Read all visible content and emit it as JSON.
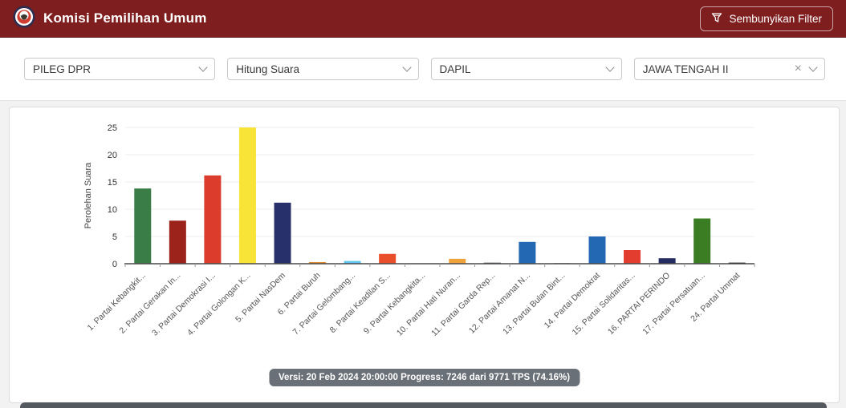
{
  "header": {
    "title": "Komisi Pemilihan Umum",
    "toggle_filter_label": "Sembunyikan Filter",
    "bg_color": "#7E1E1E"
  },
  "filters": {
    "selects": [
      {
        "value": "PILEG DPR"
      },
      {
        "value": "Hitung Suara"
      },
      {
        "value": "DAPIL"
      },
      {
        "value": "JAWA TENGAH II",
        "clearable": true
      }
    ]
  },
  "chart_data": {
    "type": "bar",
    "title": "",
    "xlabel": "",
    "ylabel": "Perolehan Suara",
    "ylim": [
      0,
      25
    ],
    "yticks": [
      0,
      5,
      10,
      15,
      20,
      25
    ],
    "grid": true,
    "legend": "none",
    "categories": [
      "1. Partai Kebangkit...",
      "2. Partai Gerakan In...",
      "3. Partai Demokrasi I...",
      "4. Partai Golongan K...",
      "5. Partai NasDem",
      "6. Partai Buruh",
      "7. Partai Gelombang...",
      "8. Partai Keadilan S...",
      "9. Partai Kebangkita...",
      "10. Partai Hati Nuran...",
      "11. Partai Garda Rep...",
      "12. Partai Amanat N...",
      "13. Partai Bulan Bint...",
      "14. Partai Demokrat",
      "15. Partai Solidaritas...",
      "16. PARTAI PERINDO",
      "17. Partai Persatuan...",
      "24. Partai Ummat"
    ],
    "values": [
      13.8,
      7.9,
      16.2,
      25,
      11.2,
      0.3,
      0.5,
      1.8,
      0.05,
      0.9,
      0.2,
      4,
      0.1,
      5,
      2.5,
      1,
      8.3,
      0.2
    ],
    "bar_colors": [
      "#3A7D46",
      "#9B231C",
      "#DC3C2B",
      "#F8E436",
      "#27306B",
      "#DE8A2D",
      "#5FC6EE",
      "#E94F2A",
      "#9AA0A6",
      "#EFA13A",
      "#57616B",
      "#2268B2",
      "#355E3B",
      "#2268B2",
      "#E23D2E",
      "#232B60",
      "#3B7D22",
      "#1C1C1C"
    ]
  },
  "status": {
    "text": "Versi: 20 Feb 2024 20:00:00 Progress: 7246 dari 9771 TPS (74.16%)"
  }
}
